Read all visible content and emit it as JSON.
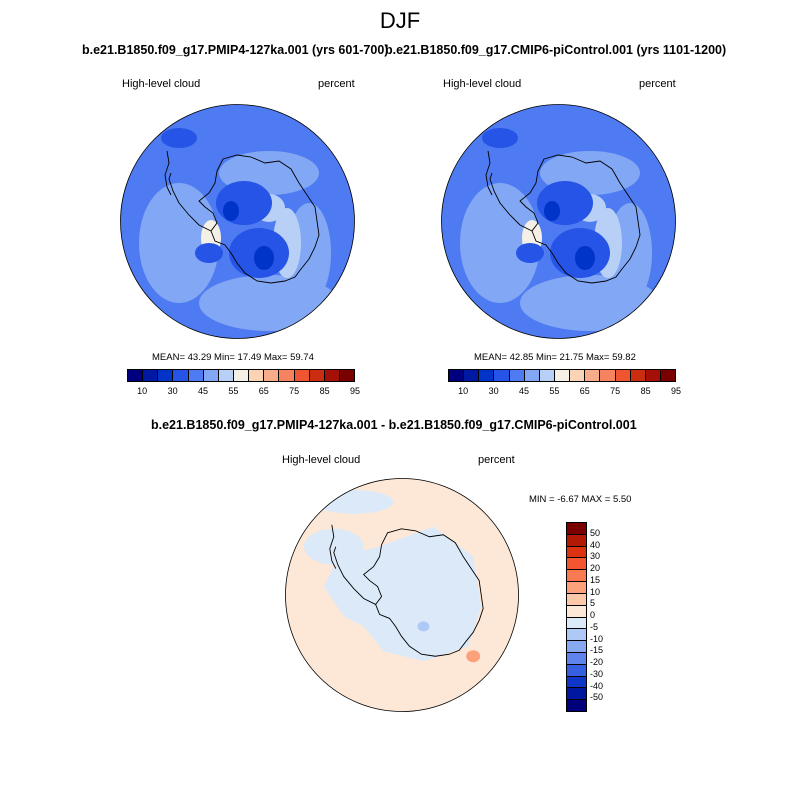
{
  "season": "DJF",
  "panels": [
    {
      "title": "b.e21.B1850.f09_g17.PMIP4-127ka.001 (yrs 601-700)",
      "variable": "High-level cloud",
      "units": "percent",
      "stats": "MEAN=  43.29  Min=  17.49  Max=  59.74"
    },
    {
      "title": "b.e21.B1850.f09_g17.CMIP6-piControl.001 (yrs 1101-1200)",
      "variable": "High-level cloud",
      "units": "percent",
      "stats": "MEAN=  42.85  Min=  21.75  Max=  59.82"
    }
  ],
  "abs_colorbar": {
    "colors": [
      "#00007f",
      "#0019a3",
      "#0033c7",
      "#2554e6",
      "#4f7bf2",
      "#82a8f5",
      "#b8d0f5",
      "#f5f0e6",
      "#fad4b4",
      "#f7ad8a",
      "#f58360",
      "#ee5530",
      "#cc2c10",
      "#a50f05",
      "#7a0000"
    ],
    "tick_labels": [
      "10",
      "30",
      "45",
      "55",
      "65",
      "75",
      "85",
      "95"
    ]
  },
  "diff_panel": {
    "title": "b.e21.B1850.f09_g17.PMIP4-127ka.001 - b.e21.B1850.f09_g17.CMIP6-piControl.001",
    "variable": "High-level cloud",
    "units": "percent",
    "stats": "MIN =  -6.67 MAX =   5.50"
  },
  "diff_colorbar": {
    "colors": [
      "#7a0000",
      "#b31a05",
      "#dd3210",
      "#f25530",
      "#f87a52",
      "#fba27c",
      "#fdc8a8",
      "#fde8d7",
      "#dbe9f9",
      "#aec9f5",
      "#87a9f2",
      "#5f85ec",
      "#3560e0",
      "#1038c8",
      "#0018a0",
      "#00007a"
    ],
    "tick_labels": [
      "50",
      "40",
      "30",
      "20",
      "15",
      "10",
      "5",
      "0",
      "-5",
      "-10",
      "-15",
      "-20",
      "-30",
      "-40",
      "-50"
    ]
  },
  "map_colors": {
    "base": "#4f7bf2",
    "dark": "#2554e6",
    "darker": "#0033c7",
    "light": "#82a8f5",
    "lighter": "#b8d0f5",
    "white": "#f5f0e6",
    "diff_pos": "#fde8d7",
    "diff_neg": "#dbe9f9",
    "diff_neg2": "#aec9f5",
    "diff_pos2": "#fba27c"
  }
}
